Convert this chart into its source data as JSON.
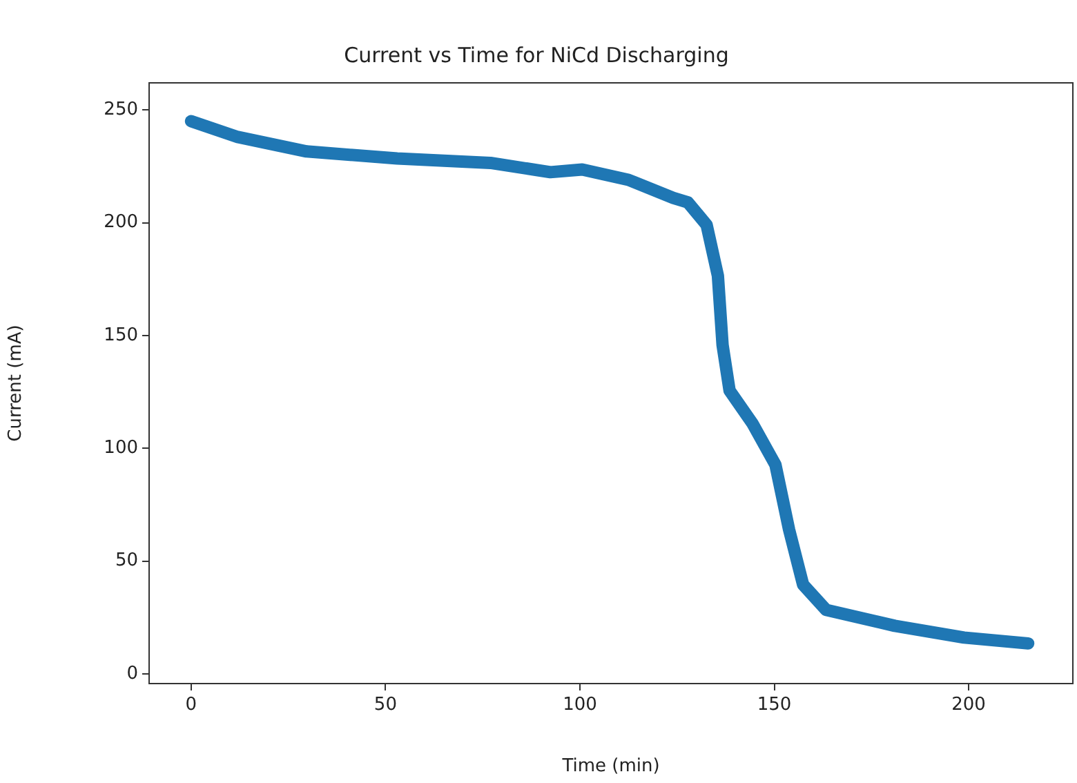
{
  "chart_data": {
    "type": "line",
    "title": "Current vs Time for NiCd Discharging",
    "xlabel": "Time (min)",
    "ylabel": "Current (mA)",
    "x": [
      0,
      12,
      29.7,
      53,
      77,
      92.4,
      100.6,
      112.5,
      124,
      127.8,
      132.6,
      135.5,
      136.7,
      138.5,
      144.4,
      150.3,
      153.8,
      157.4,
      163.3,
      181,
      198.8,
      215.3
    ],
    "series": [
      {
        "color": "#1f77b4",
        "values": [
          245,
          238,
          231.6,
          228.5,
          226.5,
          222.4,
          223.6,
          219,
          211,
          209,
          199,
          176.5,
          145.8,
          125.6,
          111,
          92.7,
          64,
          39.6,
          28.4,
          21.3,
          16.1,
          13.5
        ]
      }
    ],
    "xlim": [
      -10.8,
      226.8
    ],
    "ylim": [
      -4.3,
      262
    ],
    "xticks": [
      0,
      50,
      100,
      150,
      200
    ],
    "yticks": [
      0,
      50,
      100,
      150,
      200,
      250
    ],
    "grid": false,
    "marker": "none",
    "line_style": "solid"
  }
}
